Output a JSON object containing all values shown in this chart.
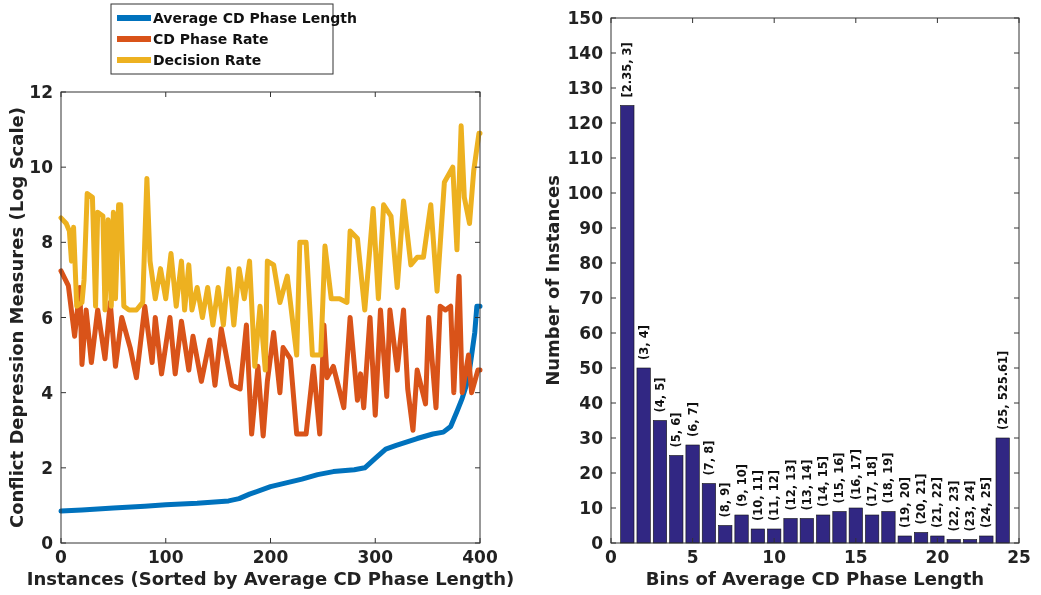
{
  "chart_data": [
    {
      "type": "line",
      "xlabel": "Instances (Sorted by Average CD Phase Length)",
      "ylabel": "Conflict Depression Measures (Log Scale)",
      "xlim": [
        0,
        400
      ],
      "ylim": [
        0,
        12
      ],
      "xticks": [
        0,
        100,
        200,
        300,
        400
      ],
      "yticks": [
        0,
        2,
        4,
        6,
        8,
        10,
        12
      ],
      "legend": "top",
      "series": [
        {
          "name": "Average CD Phase Length",
          "color": "#0072bd",
          "x": [
            0,
            20,
            50,
            80,
            100,
            130,
            160,
            170,
            180,
            200,
            215,
            230,
            245,
            260,
            280,
            290,
            300,
            310,
            320,
            340,
            355,
            365,
            372,
            378,
            383,
            387,
            390,
            393,
            395,
            397,
            400
          ],
          "values": [
            0.85,
            0.88,
            0.93,
            0.98,
            1.02,
            1.06,
            1.12,
            1.18,
            1.3,
            1.5,
            1.6,
            1.7,
            1.82,
            1.9,
            1.95,
            2.0,
            2.25,
            2.5,
            2.6,
            2.78,
            2.9,
            2.95,
            3.1,
            3.5,
            3.85,
            4.2,
            4.6,
            5.2,
            5.6,
            6.3,
            6.3
          ]
        },
        {
          "name": "CD Phase Rate",
          "color": "#d95319",
          "x": [
            0,
            7,
            13,
            18,
            20,
            24,
            29,
            35,
            42,
            47,
            52,
            58,
            66,
            72,
            80,
            87,
            90,
            96,
            104,
            109,
            115,
            122,
            126,
            134,
            142,
            147,
            153,
            163,
            171,
            177,
            182,
            188,
            193,
            197,
            203,
            209,
            212,
            219,
            225,
            234,
            241,
            247,
            251,
            254,
            260,
            270,
            276,
            283,
            286,
            289,
            295,
            300,
            305,
            311,
            314,
            321,
            327,
            331,
            336,
            340,
            348,
            351,
            358,
            362,
            367,
            372,
            375,
            380,
            383,
            389,
            392,
            398,
            400
          ],
          "values": [
            7.24,
            6.85,
            5.5,
            6.8,
            4.75,
            6.2,
            4.8,
            6.2,
            4.9,
            6.4,
            4.7,
            6.0,
            5.2,
            4.4,
            6.3,
            4.8,
            6.0,
            4.5,
            6.0,
            4.5,
            5.9,
            4.6,
            5.5,
            4.3,
            5.4,
            4.2,
            5.7,
            4.2,
            4.1,
            5.8,
            2.9,
            4.7,
            2.85,
            4.3,
            5.6,
            4.0,
            5.2,
            4.9,
            2.9,
            2.9,
            4.7,
            2.9,
            5.8,
            4.4,
            4.7,
            3.6,
            6.0,
            3.8,
            4.5,
            3.6,
            6.0,
            3.4,
            6.2,
            3.9,
            6.2,
            4.6,
            6.2,
            4.1,
            3.0,
            4.6,
            3.7,
            6.0,
            3.6,
            6.3,
            6.2,
            6.3,
            4.0,
            7.1,
            4.0,
            5.0,
            4.0,
            4.6,
            4.6
          ]
        },
        {
          "name": "Decision Rate",
          "color": "#edb120",
          "x": [
            0,
            5,
            8,
            10,
            12,
            15,
            20,
            22,
            25,
            30,
            33,
            35,
            40,
            42,
            45,
            48,
            50,
            52,
            55,
            57,
            60,
            65,
            72,
            78,
            82,
            85,
            90,
            95,
            100,
            105,
            110,
            115,
            118,
            122,
            125,
            130,
            135,
            140,
            145,
            150,
            155,
            160,
            165,
            170,
            175,
            180,
            185,
            190,
            195,
            197,
            203,
            209,
            216,
            225,
            228,
            234,
            240,
            248,
            252,
            258,
            266,
            273,
            276,
            283,
            290,
            298,
            303,
            308,
            315,
            321,
            327,
            334,
            340,
            346,
            353,
            359,
            366,
            374,
            378,
            382,
            385,
            390,
            394,
            399,
            400
          ],
          "values": [
            8.65,
            8.5,
            8.3,
            7.5,
            8.4,
            6.3,
            6.4,
            7.0,
            9.3,
            9.2,
            6.3,
            8.8,
            8.7,
            6.2,
            8.6,
            6.3,
            8.8,
            6.5,
            9.0,
            9.0,
            6.3,
            6.2,
            6.2,
            6.4,
            9.7,
            7.5,
            6.5,
            7.3,
            6.5,
            7.7,
            6.3,
            7.5,
            6.2,
            7.4,
            6.2,
            6.8,
            6.0,
            6.8,
            5.8,
            6.8,
            5.8,
            7.3,
            5.8,
            7.3,
            6.5,
            7.5,
            4.7,
            6.3,
            4.6,
            7.5,
            7.4,
            6.4,
            7.1,
            5.0,
            8.0,
            8.0,
            5.0,
            5.0,
            7.9,
            6.5,
            6.5,
            6.4,
            8.3,
            8.1,
            6.2,
            8.9,
            6.5,
            9.0,
            8.7,
            6.8,
            9.1,
            7.4,
            7.6,
            7.6,
            9.0,
            6.7,
            9.6,
            10.0,
            7.8,
            11.1,
            9.2,
            8.5,
            9.9,
            10.9,
            10.9
          ]
        }
      ]
    },
    {
      "type": "bar",
      "xlabel": "Bins of Average CD Phase Length",
      "ylabel": "Number of Instances",
      "xlim": [
        0,
        25
      ],
      "ylim": [
        0,
        150
      ],
      "xticks": [
        0,
        5,
        10,
        15,
        20,
        25
      ],
      "yticks": [
        0,
        10,
        20,
        30,
        40,
        50,
        60,
        70,
        80,
        90,
        100,
        110,
        120,
        130,
        140,
        150
      ],
      "color": "#312783",
      "x": [
        1,
        2,
        3,
        4,
        5,
        6,
        7,
        8,
        9,
        10,
        11,
        12,
        13,
        14,
        15,
        16,
        17,
        18,
        19,
        20,
        21,
        22,
        23,
        24
      ],
      "values": [
        125,
        50,
        35,
        25,
        28,
        17,
        5,
        8,
        4,
        4,
        7,
        7,
        8,
        9,
        10,
        8,
        9,
        2,
        3,
        2,
        1,
        1,
        2,
        30
      ],
      "annotations": [
        {
          "text": "[2.35, 3]",
          "x": 1,
          "y": 125
        },
        {
          "text": "(3,  4]",
          "x": 2,
          "y": 50
        },
        {
          "text": "(4, 5]",
          "x": 3,
          "y": 35
        },
        {
          "text": "(5, 6]",
          "x": 4,
          "y": 25
        },
        {
          "text": "(6, 7]",
          "x": 5,
          "y": 28
        },
        {
          "text": "(7, 8]",
          "x": 6,
          "y": 17
        },
        {
          "text": "(8, 9]",
          "x": 7,
          "y": 5
        },
        {
          "text": "(9, 10]",
          "x": 8,
          "y": 8
        },
        {
          "text": "(10, 11]",
          "x": 9,
          "y": 4
        },
        {
          "text": "(11, 12]",
          "x": 10,
          "y": 4
        },
        {
          "text": "(12, 13]",
          "x": 11,
          "y": 7
        },
        {
          "text": "(13, 14]",
          "x": 12,
          "y": 7
        },
        {
          "text": "(14, 15]",
          "x": 13,
          "y": 8
        },
        {
          "text": "(15, 16]",
          "x": 14,
          "y": 9
        },
        {
          "text": "(16, 17]",
          "x": 15,
          "y": 10
        },
        {
          "text": "(17, 18]",
          "x": 16,
          "y": 8
        },
        {
          "text": "(18, 19]",
          "x": 17,
          "y": 9
        },
        {
          "text": "(19, 20]",
          "x": 18,
          "y": 2
        },
        {
          "text": "(20, 21]",
          "x": 19,
          "y": 3
        },
        {
          "text": "(21, 22]",
          "x": 20,
          "y": 2
        },
        {
          "text": "(22, 23]",
          "x": 21,
          "y": 1
        },
        {
          "text": "(23, 24]",
          "x": 22,
          "y": 1
        },
        {
          "text": "(24, 25]",
          "x": 23,
          "y": 2
        },
        {
          "text": "(25, 525.61]",
          "x": 24,
          "y": 30
        }
      ]
    }
  ]
}
